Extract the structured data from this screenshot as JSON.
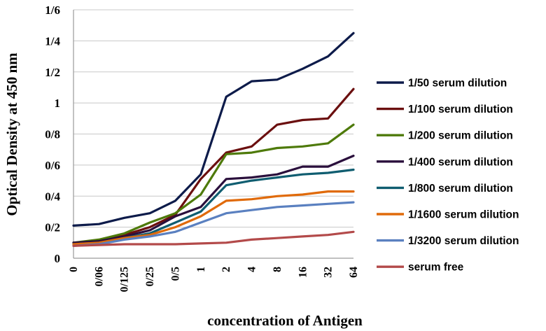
{
  "chart_data": {
    "type": "line",
    "title": "",
    "xlabel": "concentration of Antigen",
    "ylabel": "Optical Density at 450 nm",
    "categories": [
      "0",
      "0/06",
      "0/125",
      "0/25",
      "0/5",
      "1",
      "2",
      "4",
      "8",
      "16",
      "32",
      "64"
    ],
    "y_ticks": [
      {
        "value": 0,
        "label": "0"
      },
      {
        "value": 0.2,
        "label": "0/2"
      },
      {
        "value": 0.4,
        "label": "0/4"
      },
      {
        "value": 0.6,
        "label": "0/6"
      },
      {
        "value": 0.8,
        "label": "0/8"
      },
      {
        "value": 1.0,
        "label": "1"
      },
      {
        "value": 1.2,
        "label": "1/2"
      },
      {
        "value": 1.4,
        "label": "1/4"
      },
      {
        "value": 1.6,
        "label": "1/6"
      }
    ],
    "ylim": [
      0,
      1.6
    ],
    "grid": true,
    "legend_position": "right",
    "series": [
      {
        "name": "1/50 serum dilution",
        "color": "#0d1b4a",
        "values": [
          0.21,
          0.22,
          0.26,
          0.29,
          0.37,
          0.54,
          1.04,
          1.14,
          1.15,
          1.22,
          1.3,
          1.45
        ]
      },
      {
        "name": "1/100 serum dilution",
        "color": "#6b0f0f",
        "values": [
          0.1,
          0.11,
          0.15,
          0.2,
          0.28,
          0.51,
          0.68,
          0.72,
          0.86,
          0.89,
          0.9,
          1.09
        ]
      },
      {
        "name": "1/200 serum dilution",
        "color": "#4e7a0a",
        "values": [
          0.1,
          0.12,
          0.16,
          0.23,
          0.29,
          0.41,
          0.67,
          0.68,
          0.71,
          0.72,
          0.74,
          0.86
        ]
      },
      {
        "name": "1/400 serum dilution",
        "color": "#2a0f3c",
        "values": [
          0.1,
          0.11,
          0.14,
          0.18,
          0.27,
          0.33,
          0.51,
          0.52,
          0.54,
          0.59,
          0.59,
          0.66
        ]
      },
      {
        "name": "1/800 serum dilution",
        "color": "#0f5d70",
        "values": [
          0.09,
          0.1,
          0.13,
          0.16,
          0.23,
          0.3,
          0.47,
          0.5,
          0.52,
          0.54,
          0.55,
          0.57
        ]
      },
      {
        "name": "1/1600 serum dilution",
        "color": "#e06a0a",
        "values": [
          0.09,
          0.1,
          0.13,
          0.15,
          0.2,
          0.27,
          0.37,
          0.38,
          0.4,
          0.41,
          0.43,
          0.43
        ]
      },
      {
        "name": "1/3200 serum dilution",
        "color": "#5a80c0",
        "values": [
          0.08,
          0.09,
          0.12,
          0.14,
          0.17,
          0.23,
          0.29,
          0.31,
          0.33,
          0.34,
          0.35,
          0.36
        ]
      },
      {
        "name": "serum free",
        "color": "#b34a4a",
        "values": [
          0.08,
          0.085,
          0.09,
          0.09,
          0.09,
          0.095,
          0.1,
          0.12,
          0.13,
          0.14,
          0.15,
          0.17
        ]
      }
    ]
  }
}
